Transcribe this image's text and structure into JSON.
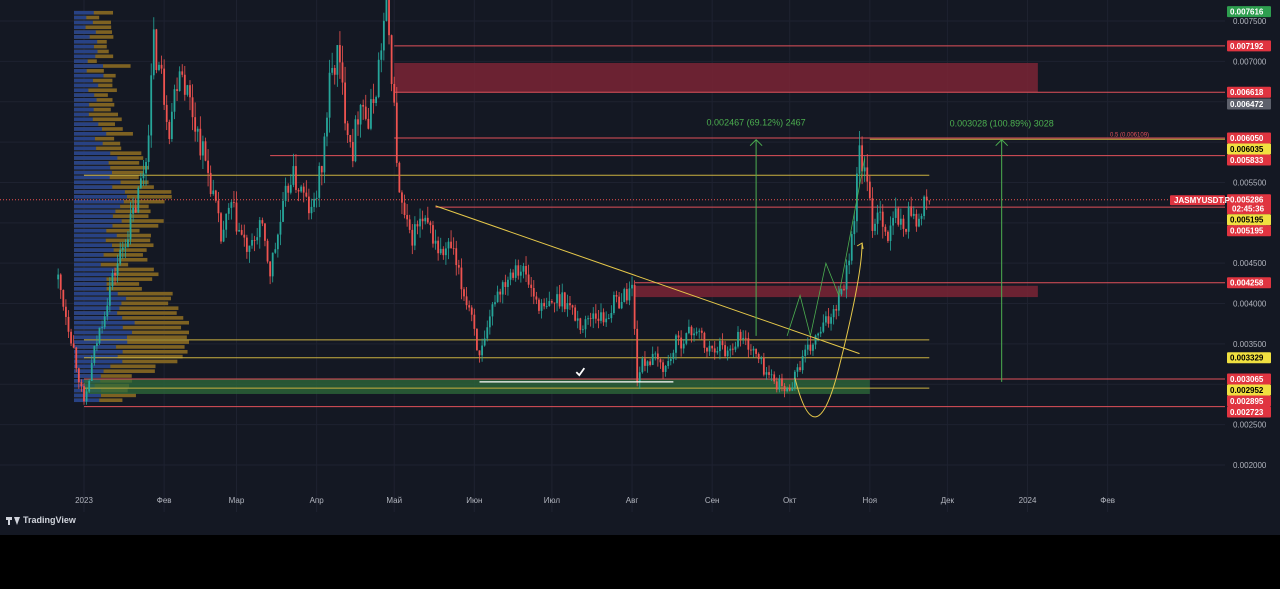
{
  "app": {
    "brand": "TradingView"
  },
  "symbol_label": "JASMYUSDT.P",
  "countdown": "02:45:36",
  "colors": {
    "background": "#141823",
    "up": "#26a69a",
    "down": "#ef5350",
    "supply_zone": "#7a2535",
    "demand_zone": "#2d6b3b",
    "level_red": "#e0505a",
    "level_yellow": "#c9b040",
    "measure_green": "#4caf50",
    "trend_yellow": "#e6c84a"
  },
  "chart_data": {
    "type": "candlestick",
    "y_axis": {
      "scale": "linear",
      "range": [
        0.00175,
        0.0077
      ]
    },
    "x_axis": {
      "ticks": [
        {
          "label": "2023",
          "t": 0
        },
        {
          "label": "Фев",
          "t": 31
        },
        {
          "label": "Мар",
          "t": 59
        },
        {
          "label": "Апр",
          "t": 90
        },
        {
          "label": "Май",
          "t": 120
        },
        {
          "label": "Июн",
          "t": 151
        },
        {
          "label": "Июл",
          "t": 181
        },
        {
          "label": "Авг",
          "t": 212
        },
        {
          "label": "Сен",
          "t": 243
        },
        {
          "label": "Окт",
          "t": 273
        },
        {
          "label": "Ноя",
          "t": 304
        },
        {
          "label": "Дек",
          "t": 334
        },
        {
          "label": "2024",
          "t": 365
        },
        {
          "label": "Фев",
          "t": 396
        }
      ]
    },
    "price_ticks": [
      {
        "label": "0.007500",
        "v": 0.0075
      },
      {
        "label": "0.007000",
        "v": 0.007
      },
      {
        "label": "0.006500",
        "v": 0.0065
      },
      {
        "label": "0.006000",
        "v": 0.006
      },
      {
        "label": "0.005500",
        "v": 0.0055
      },
      {
        "label": "0.005000",
        "v": 0.005
      },
      {
        "label": "0.004500",
        "v": 0.0045
      },
      {
        "label": "0.004000",
        "v": 0.004
      },
      {
        "label": "0.003500",
        "v": 0.0035
      },
      {
        "label": "0.003000",
        "v": 0.003
      },
      {
        "label": "0.002500",
        "v": 0.0025
      },
      {
        "label": "0.002000",
        "v": 0.002
      }
    ],
    "price_tags": [
      {
        "label": "0.007616",
        "v": 0.007616,
        "style": "green"
      },
      {
        "label": "0.007192",
        "v": 0.007192,
        "style": "red"
      },
      {
        "label": "0.006618",
        "v": 0.006618,
        "style": "red"
      },
      {
        "label": "0.006472",
        "v": 0.006472,
        "style": "gray"
      },
      {
        "label": "0.006050",
        "v": 0.00605,
        "style": "red"
      },
      {
        "label": "0.006035",
        "v": 0.006035,
        "style": "yellow"
      },
      {
        "label": "0.005833",
        "v": 0.005833,
        "style": "red"
      },
      {
        "label": "0.005286",
        "v": 0.005286,
        "style": "red-current"
      },
      {
        "label": "0.005195",
        "v": 0.005195,
        "style": "yellow"
      },
      {
        "label": "0.005195",
        "v": 0.005195,
        "style": "red"
      },
      {
        "label": "0.004258",
        "v": 0.004258,
        "style": "red"
      },
      {
        "label": "0.003329",
        "v": 0.003329,
        "style": "yellow"
      },
      {
        "label": "0.003065",
        "v": 0.003065,
        "style": "red"
      },
      {
        "label": "0.002952",
        "v": 0.002952,
        "style": "yellow"
      },
      {
        "label": "0.002895",
        "v": 0.002895,
        "style": "red"
      },
      {
        "label": "0.002723",
        "v": 0.002723,
        "style": "red"
      }
    ],
    "current_price": 0.005286,
    "price_path": [
      [
        -10,
        0.0043
      ],
      [
        -5,
        0.0036
      ],
      [
        -2,
        0.0031
      ],
      [
        0,
        0.00272
      ],
      [
        4,
        0.0034
      ],
      [
        10,
        0.0042
      ],
      [
        16,
        0.0048
      ],
      [
        20,
        0.0052
      ],
      [
        24,
        0.0058
      ],
      [
        27,
        0.0072
      ],
      [
        30,
        0.0068
      ],
      [
        33,
        0.0062
      ],
      [
        37,
        0.007
      ],
      [
        41,
        0.0065
      ],
      [
        45,
        0.006
      ],
      [
        49,
        0.0055
      ],
      [
        53,
        0.0048
      ],
      [
        57,
        0.0052
      ],
      [
        60,
        0.0049
      ],
      [
        64,
        0.0046
      ],
      [
        68,
        0.005
      ],
      [
        72,
        0.0044
      ],
      [
        76,
        0.005
      ],
      [
        80,
        0.0056
      ],
      [
        84,
        0.0054
      ],
      [
        88,
        0.0051
      ],
      [
        92,
        0.0057
      ],
      [
        95,
        0.0067
      ],
      [
        98,
        0.0071
      ],
      [
        101,
        0.0064
      ],
      [
        104,
        0.0059
      ],
      [
        107,
        0.0066
      ],
      [
        110,
        0.0062
      ],
      [
        113,
        0.0067
      ],
      [
        117,
        0.0077
      ],
      [
        119,
        0.0069
      ],
      [
        122,
        0.0053
      ],
      [
        126,
        0.0048
      ],
      [
        130,
        0.005
      ],
      [
        134,
        0.0049
      ],
      [
        138,
        0.0046
      ],
      [
        142,
        0.0047
      ],
      [
        146,
        0.0042
      ],
      [
        150,
        0.0039
      ],
      [
        153,
        0.0033
      ],
      [
        156,
        0.0036
      ],
      [
        159,
        0.0041
      ],
      [
        163,
        0.0043
      ],
      [
        167,
        0.0045
      ],
      [
        170,
        0.0044
      ],
      [
        174,
        0.0041
      ],
      [
        178,
        0.0039
      ],
      [
        181,
        0.004
      ],
      [
        185,
        0.0041
      ],
      [
        189,
        0.0039
      ],
      [
        193,
        0.0037
      ],
      [
        197,
        0.0039
      ],
      [
        201,
        0.0038
      ],
      [
        205,
        0.004
      ],
      [
        209,
        0.0041
      ],
      [
        212,
        0.0042
      ],
      [
        214,
        0.0031
      ],
      [
        217,
        0.0033
      ],
      [
        221,
        0.0033
      ],
      [
        225,
        0.0032
      ],
      [
        229,
        0.0035
      ],
      [
        233,
        0.0036
      ],
      [
        237,
        0.0037
      ],
      [
        241,
        0.0034
      ],
      [
        245,
        0.0035
      ],
      [
        249,
        0.0034
      ],
      [
        253,
        0.0036
      ],
      [
        257,
        0.0035
      ],
      [
        261,
        0.0033
      ],
      [
        265,
        0.0031
      ],
      [
        269,
        0.003
      ],
      [
        272,
        0.0029
      ],
      [
        276,
        0.0032
      ],
      [
        280,
        0.0034
      ],
      [
        284,
        0.0036
      ],
      [
        288,
        0.0038
      ],
      [
        292,
        0.0041
      ],
      [
        295,
        0.0044
      ],
      [
        298,
        0.0051
      ],
      [
        300,
        0.0059
      ],
      [
        302,
        0.0056
      ],
      [
        305,
        0.005
      ],
      [
        308,
        0.0052
      ],
      [
        311,
        0.0048
      ],
      [
        314,
        0.0051
      ],
      [
        317,
        0.0049
      ],
      [
        320,
        0.0052
      ],
      [
        323,
        0.005
      ],
      [
        326,
        0.0053
      ],
      [
        327,
        0.005286
      ]
    ],
    "zones": [
      {
        "kind": "supply",
        "t0": 120,
        "t1": 369,
        "v0": 0.00662,
        "v1": 0.00698
      },
      {
        "kind": "supply",
        "t0": 213,
        "t1": 369,
        "v0": 0.00408,
        "v1": 0.00422
      },
      {
        "kind": "demand",
        "t0": 0,
        "t1": 304,
        "v0": 0.00288,
        "v1": 0.00306
      }
    ],
    "levels": [
      {
        "v": 0.007192,
        "t0": 120,
        "color": "red"
      },
      {
        "v": 0.006618,
        "t0": 120,
        "color": "red"
      },
      {
        "v": 0.00605,
        "t0": 120,
        "color": "red"
      },
      {
        "v": 0.005833,
        "t0": 72,
        "color": "red"
      },
      {
        "v": 0.005195,
        "t0": 136,
        "color": "red"
      },
      {
        "v": 0.004258,
        "t0": 213,
        "color": "red"
      },
      {
        "v": 0.003065,
        "t0": 0,
        "color": "red"
      },
      {
        "v": 0.002723,
        "t0": 0,
        "color": "red"
      },
      {
        "v": 0.006035,
        "t0": 304,
        "color": "yellow"
      },
      {
        "v": 0.00559,
        "t0": 0,
        "t1": 327,
        "color": "yellow"
      },
      {
        "v": 0.00355,
        "t0": 0,
        "t1": 327,
        "color": "yellow"
      },
      {
        "v": 0.003329,
        "t0": 0,
        "t1": 327,
        "color": "yellow"
      },
      {
        "v": 0.002952,
        "t0": 0,
        "t1": 327,
        "color": "yellow"
      }
    ],
    "trendline": {
      "from": [
        136,
        0.00521
      ],
      "to": [
        300,
        0.00338
      ]
    },
    "fib_note": {
      "label": "0.5 (0.006109)",
      "v": 0.006109
    },
    "measurements": [
      {
        "label": "0.002467 (69.12%) 2467",
        "t": 260,
        "v_from": 0.0036,
        "v_to": 0.00603
      },
      {
        "label": "0.003028 (100.89%) 3028",
        "t": 355,
        "v_from": 0.00303,
        "v_to": 0.00603
      }
    ],
    "white_line": {
      "t0": 153,
      "t1": 228,
      "v": 0.00303
    },
    "check_mark": {
      "t": 192,
      "v": 0.00315
    }
  }
}
